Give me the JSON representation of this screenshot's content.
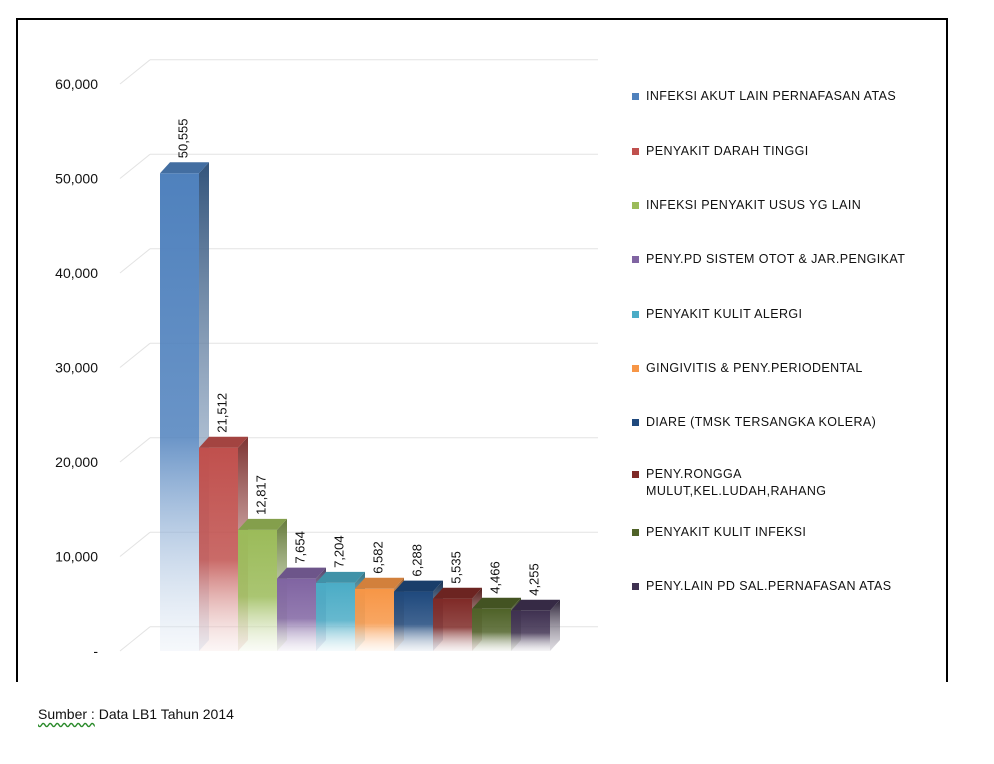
{
  "chart_data": {
    "type": "bar",
    "style": "3d-column",
    "categories": [
      "INFEKSI AKUT LAIN PERNAFASAN ATAS",
      "PENYAKIT DARAH TINGGI",
      "INFEKSI PENYAKIT USUS YG LAIN",
      "PENY.PD SISTEM OTOT & JAR.PENGIKAT",
      "PENYAKIT KULIT ALERGI",
      "GINGIVITIS & PENY.PERIODENTAL",
      "DIARE (TMSK TERSANGKA KOLERA)",
      "PENY.RONGGA MULUT,KEL.LUDAH,RAHANG",
      "PENYAKIT KULIT INFEKSI",
      "PENY.LAIN PD SAL.PERNAFASAN ATAS"
    ],
    "values": [
      50555,
      21512,
      12817,
      7654,
      7204,
      6582,
      6288,
      5535,
      4466,
      4255
    ],
    "value_labels": [
      "50,555",
      "21,512",
      "12,817",
      "7,654",
      "7,204",
      "6,582",
      "6,288",
      "5,535",
      "4,466",
      "4,255"
    ],
    "colors": [
      "#4f81bd",
      "#c0504d",
      "#9bbb59",
      "#8064a2",
      "#4bacc6",
      "#f79646",
      "#1f497d",
      "#7f2a27",
      "#4f6228",
      "#3f3151"
    ],
    "yticks": [
      "-",
      "10,000",
      "20,000",
      "30,000",
      "40,000",
      "50,000",
      "60,000"
    ],
    "ylim": [
      0,
      60000
    ],
    "grid": true,
    "legend_position": "right",
    "title": "",
    "xlabel": "",
    "ylabel": ""
  },
  "source_label": "Sumber :",
  "source_text": " Data LB1 Tahun 2014"
}
